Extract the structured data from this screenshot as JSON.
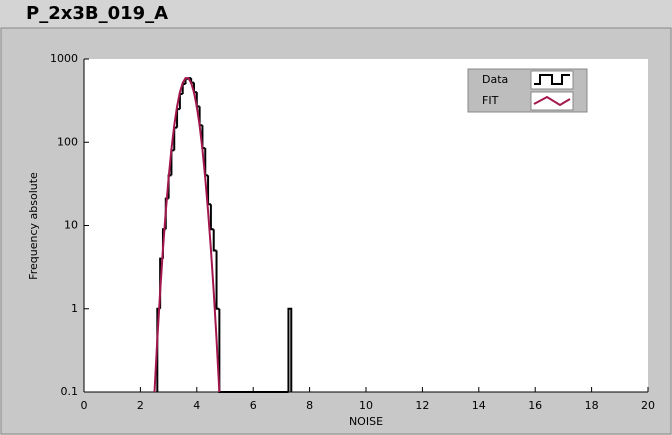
{
  "chart_data": {
    "type": "histogram",
    "title": "P_2x3B_019_A",
    "x_label": "NOISE",
    "y_label": "Frequency absolute",
    "xlim": [
      0,
      20
    ],
    "xticks": [
      0,
      2,
      4,
      6,
      8,
      10,
      12,
      14,
      16,
      18,
      20
    ],
    "ylim": [
      0.1,
      1000
    ],
    "yticks": [
      0.1,
      1,
      10,
      100,
      1000
    ],
    "y_scale": "log",
    "grid": false,
    "legend_position": "upper right",
    "series": [
      {
        "name": "Data",
        "color": "#000000",
        "bins": [
          2.6,
          2.7,
          2.8,
          2.9,
          3.0,
          3.1,
          3.2,
          3.3,
          3.4,
          3.5,
          3.6,
          3.7,
          3.8,
          3.9,
          4.0,
          4.1,
          4.2,
          4.3,
          4.4,
          4.5,
          4.6,
          4.7,
          4.8,
          7.25,
          7.35
        ],
        "values": [
          1,
          4,
          9,
          21,
          40,
          80,
          150,
          250,
          380,
          500,
          580,
          590,
          520,
          400,
          270,
          160,
          85,
          40,
          18,
          9,
          5,
          1,
          0,
          1
        ]
      },
      {
        "name": "FIT",
        "color": "#a3174d",
        "x": [
          2.5,
          2.6,
          2.7,
          2.8,
          2.9,
          3.0,
          3.1,
          3.2,
          3.3,
          3.4,
          3.5,
          3.6,
          3.7,
          3.8,
          3.9,
          4.0,
          4.1,
          4.2,
          4.3,
          4.4,
          4.5,
          4.6,
          4.7,
          4.8
        ],
        "values": [
          0.1,
          0.43,
          1.6,
          5.2,
          14.8,
          37,
          82,
          159,
          268,
          398,
          517,
          590,
          590,
          517,
          398,
          268,
          159,
          82,
          37,
          14.8,
          5.2,
          1.6,
          0.43,
          0.1
        ]
      }
    ]
  }
}
